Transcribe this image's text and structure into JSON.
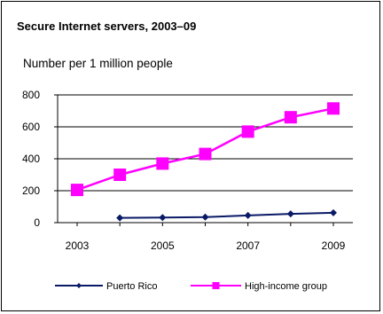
{
  "chart_data": {
    "type": "line",
    "title": "Secure Internet servers, 2003–09",
    "subtitle": "Number per 1 million people",
    "x": [
      2003,
      2004,
      2005,
      2006,
      2007,
      2008,
      2009
    ],
    "x_tick_labels": [
      "2003",
      "2005",
      "2007",
      "2009"
    ],
    "y_tick_labels": [
      "0",
      "200",
      "400",
      "600",
      "800"
    ],
    "ylim": [
      0,
      800
    ],
    "grid": "horizontal",
    "legend_position": "bottom",
    "series": [
      {
        "name": "Puerto Rico",
        "color": "#0a1a66",
        "marker": "diamond",
        "values": [
          null,
          30,
          32,
          35,
          45,
          55,
          62
        ]
      },
      {
        "name": "High-income group",
        "color": "#ff00ff",
        "marker": "square",
        "values": [
          205,
          300,
          370,
          430,
          570,
          660,
          715
        ]
      }
    ]
  }
}
